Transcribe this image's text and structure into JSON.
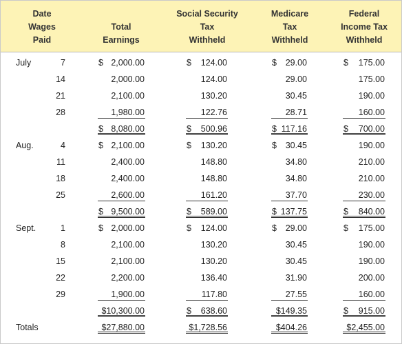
{
  "header": {
    "col_date": [
      "Date",
      "Wages",
      "Paid"
    ],
    "col_earnings": [
      "Total",
      "Earnings"
    ],
    "col_ss": [
      "Social Security",
      "Tax",
      "Withheld"
    ],
    "col_medicare": [
      "Medicare",
      "Tax",
      "Withheld"
    ],
    "col_fit": [
      "Federal",
      "Income Tax",
      "Withheld"
    ]
  },
  "rows": [
    {
      "month": "July",
      "day": "7",
      "earnings": {
        "d": "$",
        "v": "2,000.00"
      },
      "ss": {
        "d": "$",
        "v": "124.00"
      },
      "med": {
        "d": "$",
        "v": "29.00"
      },
      "fit": {
        "d": "$",
        "v": "175.00"
      },
      "line": ""
    },
    {
      "month": "",
      "day": "14",
      "earnings": {
        "d": "",
        "v": "2,000.00"
      },
      "ss": {
        "d": "",
        "v": "124.00"
      },
      "med": {
        "d": "",
        "v": "29.00"
      },
      "fit": {
        "d": "",
        "v": "175.00"
      },
      "line": ""
    },
    {
      "month": "",
      "day": "21",
      "earnings": {
        "d": "",
        "v": "2,100.00"
      },
      "ss": {
        "d": "",
        "v": "130.20"
      },
      "med": {
        "d": "",
        "v": "30.45"
      },
      "fit": {
        "d": "",
        "v": "190.00"
      },
      "line": ""
    },
    {
      "month": "",
      "day": "28",
      "earnings": {
        "d": "",
        "v": "1,980.00"
      },
      "ss": {
        "d": "",
        "v": "122.76"
      },
      "med": {
        "d": "",
        "v": "28.71"
      },
      "fit": {
        "d": "",
        "v": "160.00"
      },
      "line": "single"
    },
    {
      "month": "",
      "day": "",
      "earnings": {
        "d": "$",
        "v": "8,080.00"
      },
      "ss": {
        "d": "$",
        "v": "500.96"
      },
      "med": {
        "d": "$",
        "v": "117.16"
      },
      "fit": {
        "d": "$",
        "v": "700.00"
      },
      "line": "double"
    },
    {
      "month": "Aug.",
      "day": "4",
      "earnings": {
        "d": "$",
        "v": "2,100.00"
      },
      "ss": {
        "d": "$",
        "v": "130.20"
      },
      "med": {
        "d": "$",
        "v": "30.45"
      },
      "fit": {
        "d": "",
        "v": "190.00"
      },
      "line": ""
    },
    {
      "month": "",
      "day": "11",
      "earnings": {
        "d": "",
        "v": "2,400.00"
      },
      "ss": {
        "d": "",
        "v": "148.80"
      },
      "med": {
        "d": "",
        "v": "34.80"
      },
      "fit": {
        "d": "",
        "v": "210.00"
      },
      "line": ""
    },
    {
      "month": "",
      "day": "18",
      "earnings": {
        "d": "",
        "v": "2,400.00"
      },
      "ss": {
        "d": "",
        "v": "148.80"
      },
      "med": {
        "d": "",
        "v": "34.80"
      },
      "fit": {
        "d": "",
        "v": "210.00"
      },
      "line": ""
    },
    {
      "month": "",
      "day": "25",
      "earnings": {
        "d": "",
        "v": "2,600.00"
      },
      "ss": {
        "d": "",
        "v": "161.20"
      },
      "med": {
        "d": "",
        "v": "37.70"
      },
      "fit": {
        "d": "",
        "v": "230.00"
      },
      "line": "single"
    },
    {
      "month": "",
      "day": "",
      "earnings": {
        "d": "$",
        "v": "9,500.00"
      },
      "ss": {
        "d": "$",
        "v": "589.00"
      },
      "med": {
        "d": "$",
        "v": "137.75"
      },
      "fit": {
        "d": "$",
        "v": "840.00"
      },
      "line": "double"
    },
    {
      "month": "Sept.",
      "day": "1",
      "earnings": {
        "d": "$",
        "v": "2,000.00"
      },
      "ss": {
        "d": "$",
        "v": "124.00"
      },
      "med": {
        "d": "$",
        "v": "29.00"
      },
      "fit": {
        "d": "$",
        "v": "175.00"
      },
      "line": ""
    },
    {
      "month": "",
      "day": "8",
      "earnings": {
        "d": "",
        "v": "2,100.00"
      },
      "ss": {
        "d": "",
        "v": "130.20"
      },
      "med": {
        "d": "",
        "v": "30.45"
      },
      "fit": {
        "d": "",
        "v": "190.00"
      },
      "line": ""
    },
    {
      "month": "",
      "day": "15",
      "earnings": {
        "d": "",
        "v": "2,100.00"
      },
      "ss": {
        "d": "",
        "v": "130.20"
      },
      "med": {
        "d": "",
        "v": "30.45"
      },
      "fit": {
        "d": "",
        "v": "190.00"
      },
      "line": ""
    },
    {
      "month": "",
      "day": "22",
      "earnings": {
        "d": "",
        "v": "2,200.00"
      },
      "ss": {
        "d": "",
        "v": "136.40"
      },
      "med": {
        "d": "",
        "v": "31.90"
      },
      "fit": {
        "d": "",
        "v": "200.00"
      },
      "line": ""
    },
    {
      "month": "",
      "day": "29",
      "earnings": {
        "d": "",
        "v": "1,900.00"
      },
      "ss": {
        "d": "",
        "v": "117.80"
      },
      "med": {
        "d": "",
        "v": "27.55"
      },
      "fit": {
        "d": "",
        "v": "160.00"
      },
      "line": "single"
    },
    {
      "month": "",
      "day": "",
      "earnings": {
        "d": "",
        "v": "$10,300.00"
      },
      "ss": {
        "d": "$",
        "v": "638.60"
      },
      "med": {
        "d": "",
        "v": "$149.35"
      },
      "fit": {
        "d": "$",
        "v": "915.00"
      },
      "line": "double"
    },
    {
      "month": "Totals",
      "day": "",
      "earnings": {
        "d": "",
        "v": "$27,880.00"
      },
      "ss": {
        "d": "",
        "v": "$1,728.56"
      },
      "med": {
        "d": "",
        "v": "$404.26"
      },
      "fit": {
        "d": "",
        "v": "$2,455.00"
      },
      "line": "double"
    }
  ],
  "colors": {
    "header_bg": "#fdf3b6",
    "border": "#c9c9c9"
  }
}
